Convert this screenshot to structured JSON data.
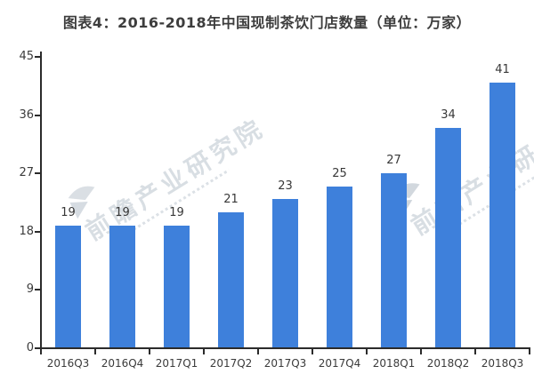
{
  "watermark": {
    "text": "前瞻产业研究院"
  },
  "chart_data": {
    "type": "bar",
    "title": "图表4：2016-2018年中国现制茶饮门店数量（单位：万家）",
    "categories": [
      "2016Q3",
      "2016Q4",
      "2017Q1",
      "2017Q2",
      "2017Q3",
      "2017Q4",
      "2018Q1",
      "2018Q2",
      "2018Q3"
    ],
    "values": [
      19,
      19,
      19,
      21,
      23,
      25,
      27,
      34,
      41
    ],
    "unit_label": "万家",
    "xlabel": "",
    "ylabel": "",
    "ylim": [
      0,
      45
    ],
    "yticks": [
      0,
      9,
      18,
      27,
      36,
      45
    ],
    "grid": false,
    "legend": false,
    "bar_color": "#3E80DB",
    "axis_color": "#2b2b2b",
    "label_color": "#3b3b3b",
    "watermark_color": "#ccd3da"
  }
}
